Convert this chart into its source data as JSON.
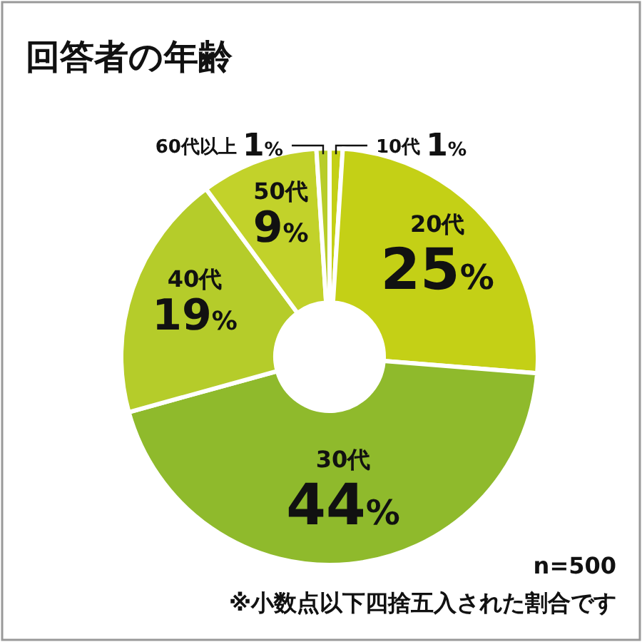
{
  "chart_data": {
    "type": "donut",
    "title": "回答者の年齢",
    "categories": [
      "10代",
      "20代",
      "30代",
      "40代",
      "50代",
      "60代以上"
    ],
    "values": [
      1,
      25,
      44,
      19,
      9,
      1
    ],
    "colors": [
      "#c4d016",
      "#c4d016",
      "#8fba2c",
      "#b5cc2a",
      "#c2d22a",
      "#b8cd2a"
    ],
    "value_labels": [
      "1%",
      "25%",
      "44%",
      "19%",
      "9%",
      "1%"
    ],
    "annotations": [
      "n=500",
      "※小数点以下四捨五入された割合です"
    ]
  }
}
